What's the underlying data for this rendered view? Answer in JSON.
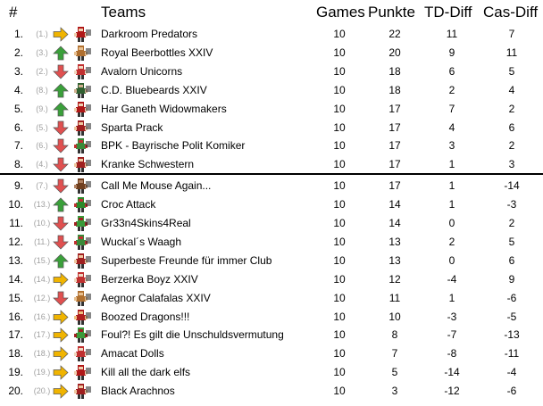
{
  "header": {
    "rank": "#",
    "teams": "Teams",
    "games": "Games",
    "points": "Punkte",
    "td_diff": "TD-Diff",
    "cas_diff": "Cas-Diff"
  },
  "colors": {
    "up": "#3aa03a",
    "down": "#e05050",
    "same": "#f0b400"
  },
  "rows": [
    {
      "rank": "1.",
      "prev": "(1.)",
      "trend": "same",
      "icon": "red-skull-helmet-icon",
      "team": "Darkroom Predators",
      "games": "10",
      "points": "22",
      "td": "11",
      "cas": "7"
    },
    {
      "rank": "2.",
      "prev": "(3.)",
      "trend": "up",
      "icon": "dwarf-player-icon",
      "team": "Royal Beerbottles XXIV",
      "games": "10",
      "points": "20",
      "td": "9",
      "cas": "11"
    },
    {
      "rank": "3.",
      "prev": "(2.)",
      "trend": "down",
      "icon": "elf-player-icon",
      "team": "Avalorn Unicorns",
      "games": "10",
      "points": "18",
      "td": "6",
      "cas": "5"
    },
    {
      "rank": "4.",
      "prev": "(8.)",
      "trend": "up",
      "icon": "pirate-player-icon",
      "team": "C.D. Bluebeards XXIV",
      "games": "10",
      "points": "18",
      "td": "2",
      "cas": "4"
    },
    {
      "rank": "5.",
      "prev": "(9.)",
      "trend": "up",
      "icon": "red-skull-helmet-icon",
      "team": "Har Ganeth Widowmakers",
      "games": "10",
      "points": "17",
      "td": "7",
      "cas": "2"
    },
    {
      "rank": "6.",
      "prev": "(5.)",
      "trend": "down",
      "icon": "human-player-icon",
      "team": "Sparta Prack",
      "games": "10",
      "points": "17",
      "td": "4",
      "cas": "6"
    },
    {
      "rank": "7.",
      "prev": "(6.)",
      "trend": "down",
      "icon": "orc-player-icon",
      "team": "BPK - Bayrische Polit Komiker",
      "games": "10",
      "points": "17",
      "td": "3",
      "cas": "2"
    },
    {
      "rank": "8.",
      "prev": "(4.)",
      "trend": "down",
      "icon": "human-player-icon",
      "team": "Kranke Schwestern",
      "games": "10",
      "points": "17",
      "td": "1",
      "cas": "3"
    },
    {
      "rank": "9.",
      "prev": "(7.)",
      "trend": "down",
      "icon": "ratman-player-icon",
      "team": "Call Me Mouse Again...",
      "games": "10",
      "points": "17",
      "td": "1",
      "cas": "-14"
    },
    {
      "rank": "10.",
      "prev": "(13.)",
      "trend": "up",
      "icon": "lizard-player-icon",
      "team": "Croc Attack",
      "games": "10",
      "points": "14",
      "td": "1",
      "cas": "-3"
    },
    {
      "rank": "11.",
      "prev": "(10.)",
      "trend": "down",
      "icon": "goblin-player-icon",
      "team": "Gr33n4Skins4Real",
      "games": "10",
      "points": "14",
      "td": "0",
      "cas": "2"
    },
    {
      "rank": "12.",
      "prev": "(11.)",
      "trend": "down",
      "icon": "orc-player-icon",
      "team": "Wuckal´s Waagh",
      "games": "10",
      "points": "13",
      "td": "2",
      "cas": "5"
    },
    {
      "rank": "13.",
      "prev": "(15.)",
      "trend": "up",
      "icon": "human-player-icon",
      "team": "Superbeste Freunde für immer Club",
      "games": "10",
      "points": "13",
      "td": "0",
      "cas": "6"
    },
    {
      "rank": "14.",
      "prev": "(14.)",
      "trend": "same",
      "icon": "elf-player-icon",
      "team": "Berzerka Boyz XXIV",
      "games": "10",
      "points": "12",
      "td": "-4",
      "cas": "9"
    },
    {
      "rank": "15.",
      "prev": "(12.)",
      "trend": "down",
      "icon": "dwarf-player-icon",
      "team": "Aegnor Calafalas XXIV",
      "games": "10",
      "points": "11",
      "td": "1",
      "cas": "-6"
    },
    {
      "rank": "16.",
      "prev": "(16.)",
      "trend": "same",
      "icon": "dragon-player-icon",
      "team": "Boozed Dragons!!!",
      "games": "10",
      "points": "10",
      "td": "-3",
      "cas": "-5"
    },
    {
      "rank": "17.",
      "prev": "(17.)",
      "trend": "same",
      "icon": "goblin-player-icon",
      "team": "Foul?! Es gilt die Unschuldsvermutung",
      "games": "10",
      "points": "8",
      "td": "-7",
      "cas": "-13"
    },
    {
      "rank": "18.",
      "prev": "(18.)",
      "trend": "same",
      "icon": "elf-player-icon",
      "team": "Amacat Dolls",
      "games": "10",
      "points": "7",
      "td": "-8",
      "cas": "-11"
    },
    {
      "rank": "19.",
      "prev": "(19.)",
      "trend": "same",
      "icon": "red-skull-helmet-icon",
      "team": "Kill all the dark elfs",
      "games": "10",
      "points": "5",
      "td": "-14",
      "cas": "-4"
    },
    {
      "rank": "20.",
      "prev": "(20.)",
      "trend": "same",
      "icon": "human-player-icon",
      "team": "Black Arachnos",
      "games": "10",
      "points": "3",
      "td": "-12",
      "cas": "-6"
    }
  ]
}
